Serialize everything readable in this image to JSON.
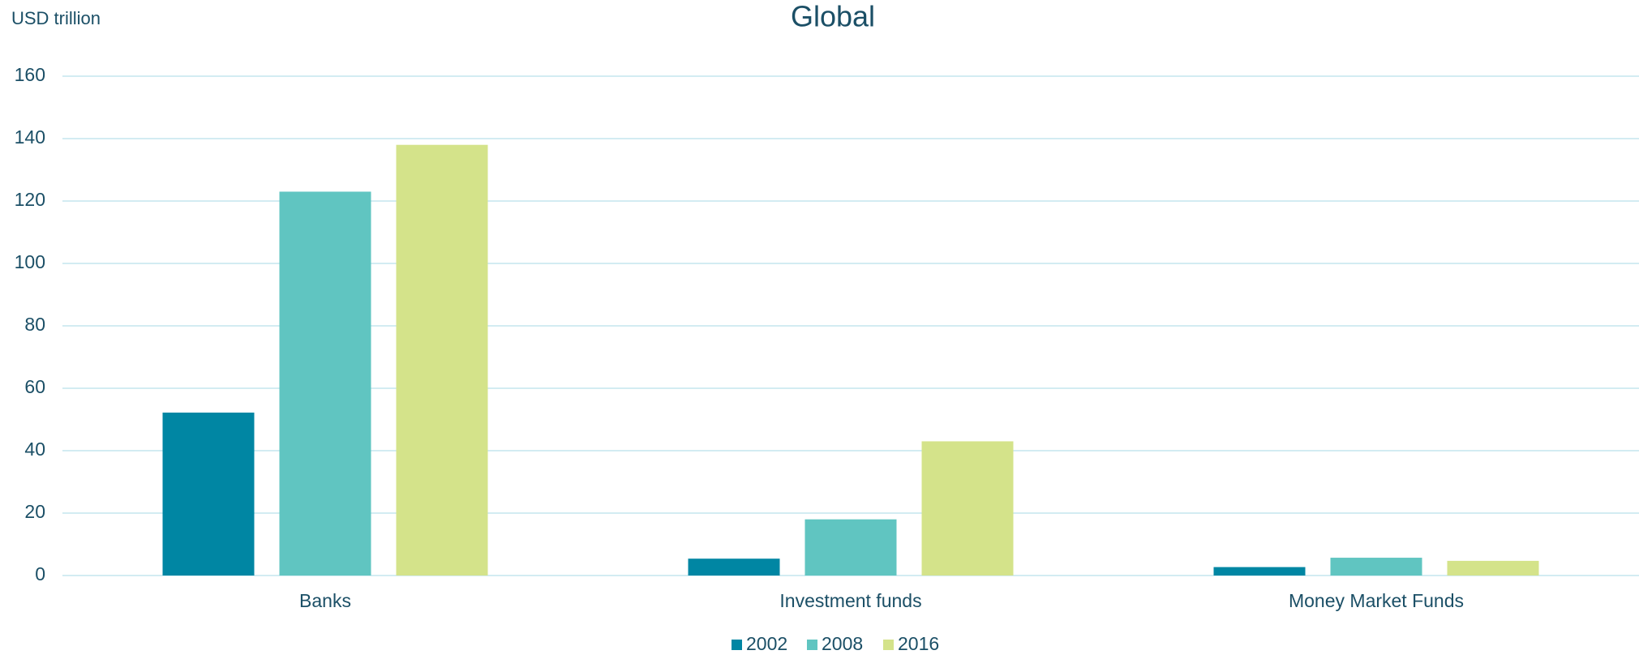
{
  "chart_data": {
    "type": "bar",
    "title": "Global",
    "y_axis_label": "USD trillion",
    "categories": [
      "Banks",
      "Investment funds",
      "Money Market Funds"
    ],
    "series": [
      {
        "name": "2002",
        "color": "#0086a3",
        "values": [
          52.2,
          5.4,
          2.7
        ]
      },
      {
        "name": "2008",
        "color": "#60c5c1",
        "values": [
          123,
          18,
          5.7
        ]
      },
      {
        "name": "2016",
        "color": "#d4e38a",
        "values": [
          138,
          43,
          4.7
        ]
      }
    ],
    "ylim": [
      0,
      160
    ],
    "yticks": [
      0,
      20,
      40,
      60,
      80,
      100,
      120,
      140,
      160
    ],
    "grid": true,
    "legend": "bottom"
  }
}
